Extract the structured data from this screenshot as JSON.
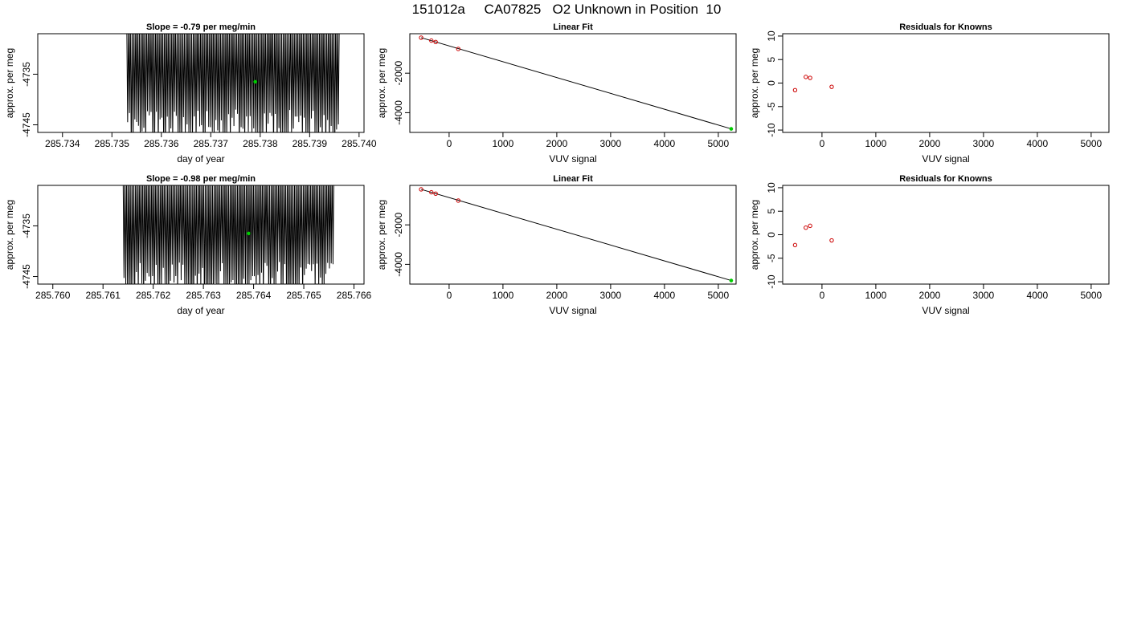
{
  "page_title": "151012a     CA07825   O2 Unknown in Position  10",
  "chart_data": [
    {
      "type": "line",
      "title": "Slope =  -0.79  per meg/min",
      "xlabel": "day of year",
      "ylabel": "approx. per meg",
      "xlim": [
        285.7335,
        285.7401
      ],
      "ylim": [
        -4746.5,
        -4727
      ],
      "xticks": [
        "285.734",
        "285.735",
        "285.736",
        "285.737",
        "285.738",
        "285.739",
        "285.740"
      ],
      "yticks": [
        "-4735",
        "-4745"
      ],
      "signal": {
        "x_start": 285.7353,
        "x_end": 285.7396,
        "oscillations": 118,
        "seed": 11
      },
      "marker": {
        "x": 285.7379,
        "y": -4736.5,
        "color": "#00cc00"
      },
      "line_color": "#000000"
    },
    {
      "type": "scatter",
      "title": "Linear Fit",
      "xlabel": "VUV signal",
      "ylabel": "approx. per meg",
      "xlim": [
        -730,
        5330
      ],
      "ylim": [
        -5000,
        0
      ],
      "xticks": [
        "0",
        "1000",
        "2000",
        "3000",
        "4000",
        "5000"
      ],
      "yticks": [
        "-2000",
        "-4000"
      ],
      "points": [
        {
          "x": -520,
          "y": -200
        },
        {
          "x": -330,
          "y": -350
        },
        {
          "x": -250,
          "y": -420
        },
        {
          "x": 170,
          "y": -770
        }
      ],
      "point_color": "#cc0000",
      "fit_line": {
        "x": [
          -520,
          5240
        ],
        "y": [
          -200,
          -4820
        ]
      },
      "marker": {
        "x": 5240,
        "y": -4820,
        "color": "#00cc00"
      }
    },
    {
      "type": "scatter",
      "title": "Residuals for Knowns",
      "xlabel": "VUV signal",
      "ylabel": "approx. per meg",
      "xlim": [
        -730,
        5330
      ],
      "ylim": [
        -10.5,
        10.5
      ],
      "xticks": [
        "0",
        "1000",
        "2000",
        "3000",
        "4000",
        "5000"
      ],
      "yticks": [
        "-10",
        "-5",
        "0",
        "5",
        "10"
      ],
      "points": [
        {
          "x": -500,
          "y": -1.5
        },
        {
          "x": -300,
          "y": 1.3
        },
        {
          "x": -220,
          "y": 1.1
        },
        {
          "x": 180,
          "y": -0.8
        }
      ],
      "point_color": "#cc0000"
    },
    {
      "type": "line",
      "title": "Slope =  -0.98  per meg/min",
      "xlabel": "day of year",
      "ylabel": "approx. per meg",
      "xlim": [
        285.7597,
        285.7662
      ],
      "ylim": [
        -4746.5,
        -4727
      ],
      "xticks": [
        "285.760",
        "285.761",
        "285.762",
        "285.763",
        "285.764",
        "285.765",
        "285.766"
      ],
      "yticks": [
        "-4735",
        "-4745"
      ],
      "signal": {
        "x_start": 285.7614,
        "x_end": 285.7656,
        "oscillations": 118,
        "seed": 23
      },
      "marker": {
        "x": 285.7639,
        "y": -4736.5,
        "color": "#00cc00"
      },
      "line_color": "#000000"
    },
    {
      "type": "scatter",
      "title": "Linear Fit",
      "xlabel": "VUV signal",
      "ylabel": "approx. per meg",
      "xlim": [
        -730,
        5330
      ],
      "ylim": [
        -5000,
        0
      ],
      "xticks": [
        "0",
        "1000",
        "2000",
        "3000",
        "4000",
        "5000"
      ],
      "yticks": [
        "-2000",
        "-4000"
      ],
      "points": [
        {
          "x": -520,
          "y": -200
        },
        {
          "x": -330,
          "y": -350
        },
        {
          "x": -250,
          "y": -420
        },
        {
          "x": 170,
          "y": -770
        }
      ],
      "point_color": "#cc0000",
      "fit_line": {
        "x": [
          -520,
          5240
        ],
        "y": [
          -200,
          -4820
        ]
      },
      "marker": {
        "x": 5240,
        "y": -4820,
        "color": "#00cc00"
      }
    },
    {
      "type": "scatter",
      "title": "Residuals for Knowns",
      "xlabel": "VUV signal",
      "ylabel": "approx. per meg",
      "xlim": [
        -730,
        5330
      ],
      "ylim": [
        -10.5,
        10.5
      ],
      "xticks": [
        "0",
        "1000",
        "2000",
        "3000",
        "4000",
        "5000"
      ],
      "yticks": [
        "-10",
        "-5",
        "0",
        "5",
        "10"
      ],
      "points": [
        {
          "x": -500,
          "y": -2.2
        },
        {
          "x": -300,
          "y": 1.5
        },
        {
          "x": -220,
          "y": 1.9
        },
        {
          "x": 180,
          "y": -1.2
        }
      ],
      "point_color": "#cc0000"
    }
  ]
}
